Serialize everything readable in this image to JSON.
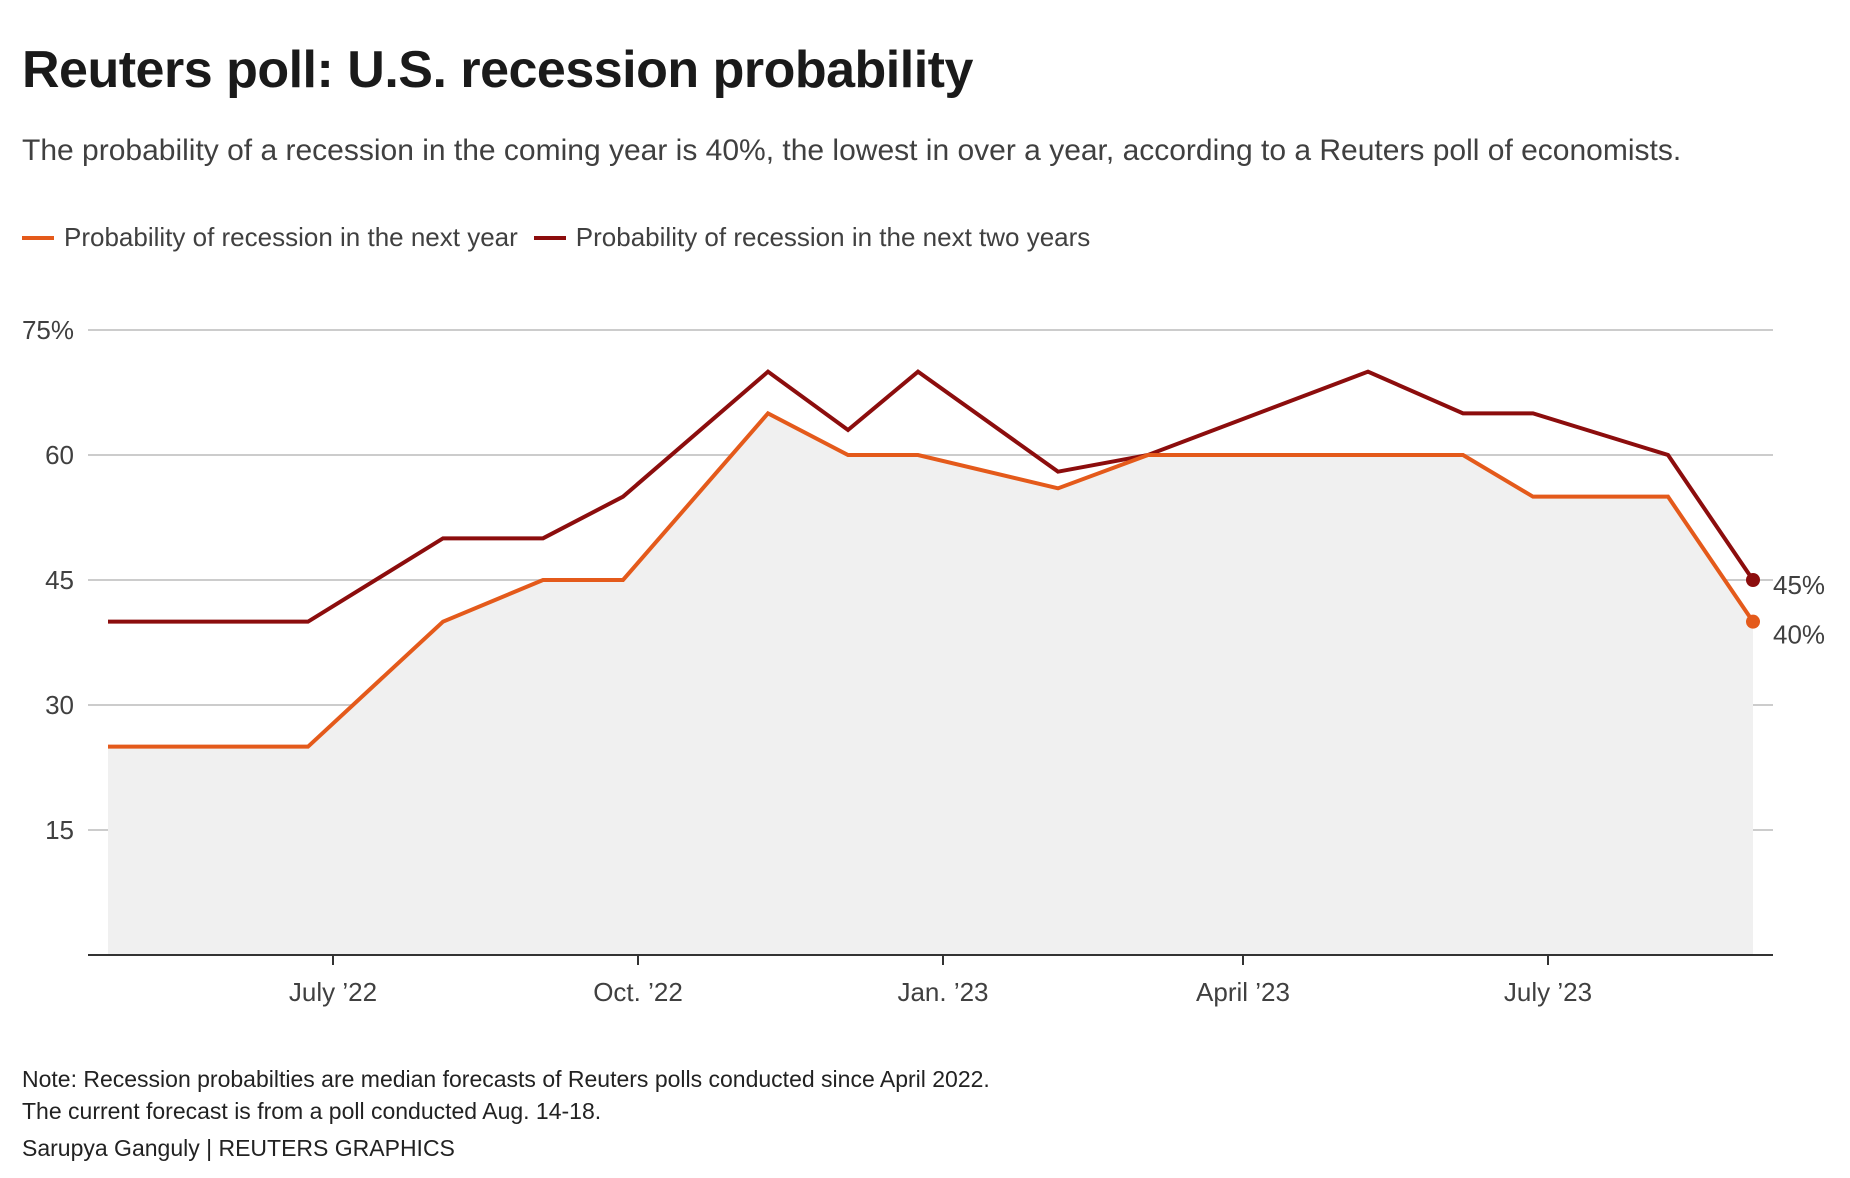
{
  "chart_data": {
    "type": "line",
    "title": "Reuters poll: U.S. recession probability",
    "subtitle": "The probability of a recession in the coming year is 40%, the lowest in over a year, according to a Reuters poll of economists.",
    "xlabel": "",
    "ylabel": "",
    "ylim": [
      0,
      75
    ],
    "yticks": [
      15,
      30,
      45,
      60,
      75
    ],
    "ytick_labels": [
      "15",
      "30",
      "45",
      "60",
      "75%"
    ],
    "xticks": [
      {
        "label": "July ’22",
        "x": 2.25
      },
      {
        "label": "Oct. ’22",
        "x": 5.3
      },
      {
        "label": "Jan. ’23",
        "x": 8.35
      },
      {
        "label": "April ’23",
        "x": 11.35
      },
      {
        "label": "July ’23",
        "x": 14.4
      }
    ],
    "x": [
      0,
      2,
      3.35,
      4.35,
      5.15,
      6.6,
      7.4,
      8.1,
      9.5,
      10.4,
      12.6,
      13.55,
      14.25,
      15.6,
      16.45
    ],
    "series": [
      {
        "name": "Probability of recession in the next year",
        "color": "#e45a1b",
        "values": [
          25,
          25,
          40,
          45,
          45,
          65,
          60,
          60,
          56,
          60,
          60,
          60,
          55,
          55,
          40
        ],
        "end_label": "40%"
      },
      {
        "name": "Probability of recession in the next two years",
        "color": "#8c0d0d",
        "values": [
          40,
          40,
          50,
          50,
          55,
          70,
          63,
          70,
          58,
          60,
          70,
          65,
          65,
          60,
          45
        ],
        "end_label": "45%"
      }
    ],
    "area_color": "#f0f0f0",
    "grid": true,
    "legend": "top-left"
  },
  "footer": {
    "note_line1": "Note: Recession probabilties are median forecasts of Reuters polls conducted since April 2022.",
    "note_line2": "The current forecast is from a poll conducted Aug. 14-18.",
    "credit": "Sarupya Ganguly | REUTERS GRAPHICS"
  }
}
